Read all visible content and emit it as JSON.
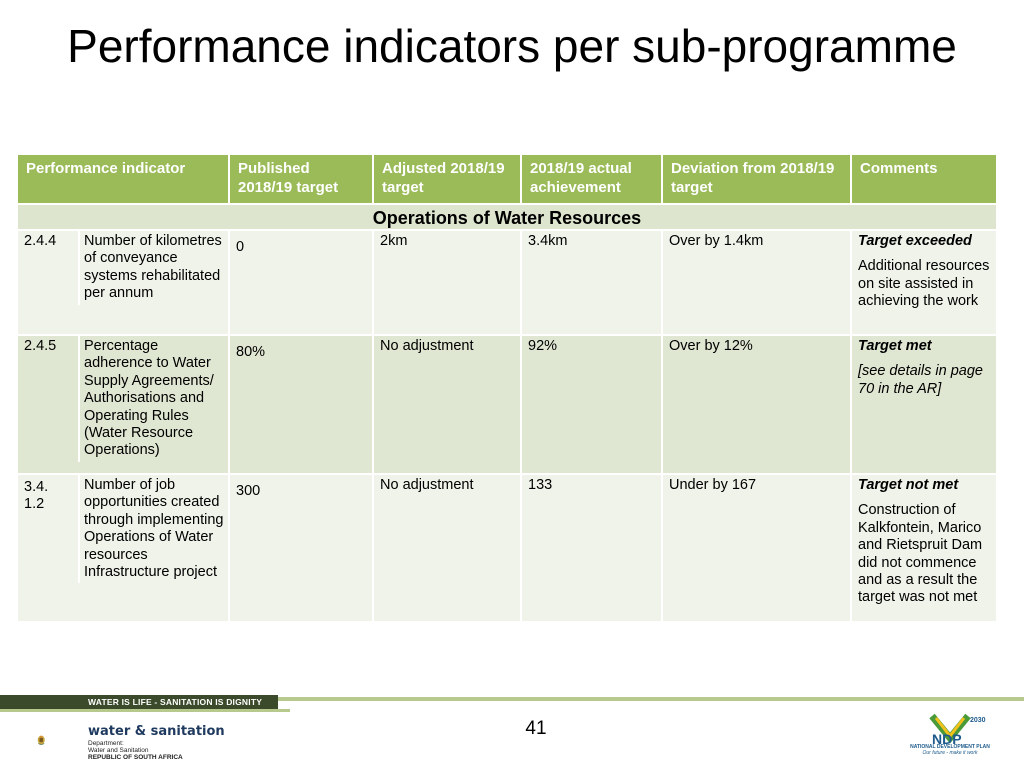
{
  "slide": {
    "title": "Performance indicators per sub-programme",
    "page_number": "41"
  },
  "table": {
    "headers": [
      "Performance indicator",
      "Published 2018/19 target",
      "Adjusted 2018/19 target",
      "2018/19 actual achievement",
      "Deviation from 2018/19 target",
      "Comments"
    ],
    "section_title": "Operations of Water Resources",
    "rows": [
      {
        "number": "2.4.4",
        "number_line2": "",
        "indicator": "Number of kilometres of conveyance systems rehabilitated per annum",
        "published": "0",
        "adjusted": "2km",
        "actual": "3.4km",
        "deviation": "Over by 1.4km",
        "status": "Target exceeded",
        "comment": "Additional resources on site assisted in achieving the work",
        "comment_italic": ""
      },
      {
        "number": "2.4.5",
        "number_line2": "",
        "indicator": "Percentage adherence to Water Supply Agreements/ Authorisations and Operating Rules (Water Resource Operations)",
        "published": "80%",
        "adjusted": "No adjustment",
        "actual": "92%",
        "deviation": "Over by 12%",
        "status": "Target met",
        "comment": "",
        "comment_italic": "[see details in page  70  in the AR]"
      },
      {
        "number": "3.4.",
        "number_line2": "1.2",
        "indicator": "Number of job opportunities created through implementing Operations of Water resources Infrastructure project",
        "published": "300",
        "adjusted": "No adjustment",
        "actual": "133",
        "deviation": "Under by 167",
        "status": "Target not met",
        "comment": "Construction of Kalkfontein, Marico and Rietspruit Dam did not commence and as a result the target was not met",
        "comment_italic": ""
      }
    ]
  },
  "footer": {
    "slogan": "WATER IS LIFE - SANITATION IS DIGNITY",
    "department_name": "water & sanitation",
    "department_line1": "Department:",
    "department_line2": "Water and Sanitation",
    "department_line3": "REPUBLIC OF SOUTH AFRICA",
    "ndp_year": "2030",
    "ndp_abbr": "NDP",
    "ndp_caption": "NATIONAL DEVELOPMENT PLAN",
    "ndp_tagline": "Our future - make it work"
  },
  "colors": {
    "header_green": "#9bbb59",
    "row_light": "#eff3ea",
    "row_dark": "#dfe7d2",
    "footer_dark": "#3b4a2a"
  }
}
